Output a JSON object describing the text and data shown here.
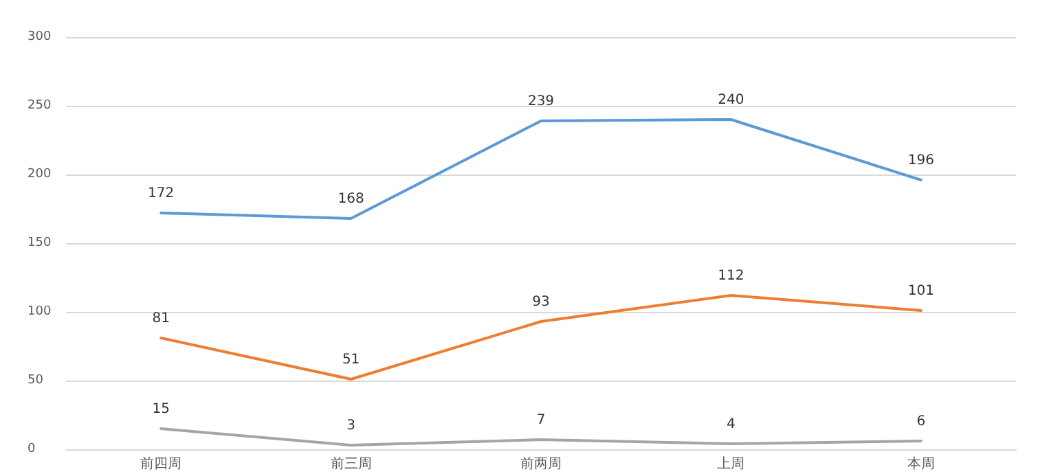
{
  "chart_data": {
    "type": "line",
    "categories": [
      "前四周",
      "前三周",
      "前两周",
      "上周",
      "本周"
    ],
    "series": [
      {
        "color": "#5b9bd5",
        "values": [
          172,
          168,
          239,
          240,
          196
        ]
      },
      {
        "color": "#ed7d31",
        "values": [
          81,
          51,
          93,
          112,
          101
        ]
      },
      {
        "color": "#a5a5a5",
        "values": [
          15,
          3,
          7,
          4,
          6
        ]
      }
    ],
    "ylim": [
      0,
      300
    ],
    "yticks": [
      0,
      50,
      100,
      150,
      200,
      250,
      300
    ],
    "grid": "y",
    "data_labels": true,
    "marker": "none",
    "line_style": "solid"
  }
}
